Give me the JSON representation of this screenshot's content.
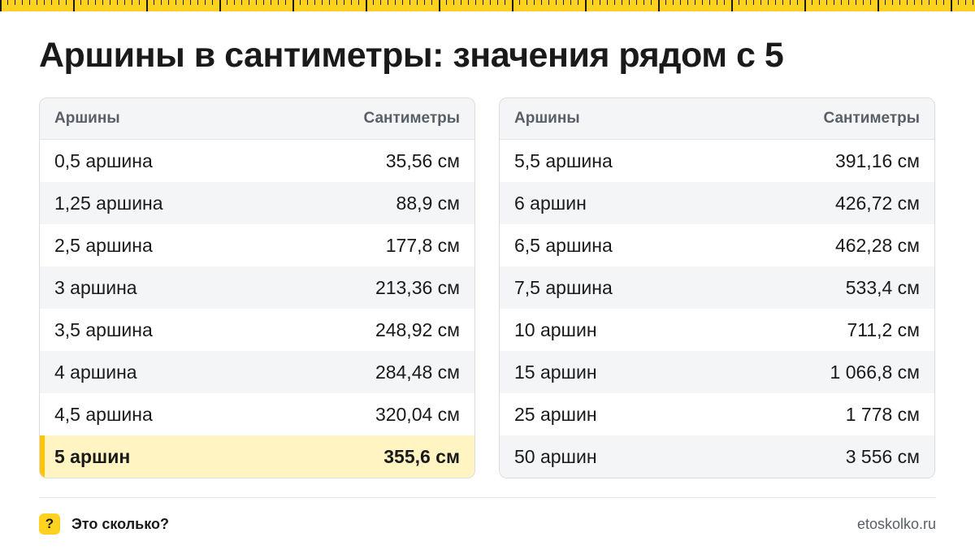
{
  "title": "Аршины в сантиметры: значения рядом с 5",
  "accent_color": "#ffd21f",
  "highlight_color": "#fff4c2",
  "left_table": {
    "headers": [
      "Аршины",
      "Сантиметры"
    ],
    "rows": [
      [
        "0,5 аршина",
        "35,56 см"
      ],
      [
        "1,25 аршина",
        "88,9 см"
      ],
      [
        "2,5 аршина",
        "177,8 см"
      ],
      [
        "3 аршина",
        "213,36 см"
      ],
      [
        "3,5 аршина",
        "248,92 см"
      ],
      [
        "4 аршина",
        "284,48 см"
      ],
      [
        "4,5 аршина",
        "320,04 см"
      ],
      [
        "5 аршин",
        "355,6 см"
      ]
    ],
    "highlighted_row": 7
  },
  "right_table": {
    "headers": [
      "Аршины",
      "Сантиметры"
    ],
    "rows": [
      [
        "5,5 аршина",
        "391,16 см"
      ],
      [
        "6 аршин",
        "426,72 см"
      ],
      [
        "6,5 аршина",
        "462,28 см"
      ],
      [
        "7,5 аршина",
        "533,4 см"
      ],
      [
        "10 аршин",
        "711,2 см"
      ],
      [
        "15 аршин",
        "1 066,8 см"
      ],
      [
        "25 аршин",
        "1 778 см"
      ],
      [
        "50 аршин",
        "3 556 см"
      ]
    ]
  },
  "footer": {
    "icon_glyph": "?",
    "icon_name": "question-mark-icon",
    "brand": "Это сколько?",
    "site": "etoskolko.ru"
  }
}
